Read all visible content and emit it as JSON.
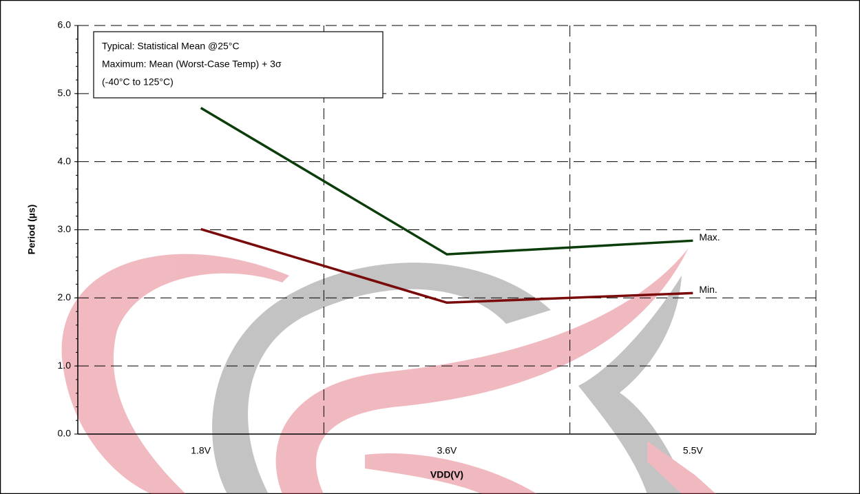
{
  "chart_data": {
    "type": "line",
    "ylabel": "Period (µs)",
    "xlabel": "VDD(V)",
    "annotation": [
      "Typical: Statistical Mean @25°C",
      "Maximum: Mean (Worst-Case Temp) + 3σ",
      "(-40°C to 125°C)"
    ],
    "categories": [
      "1.8V",
      "3.6V",
      "5.5V"
    ],
    "series": [
      {
        "name": "Max.",
        "color": "#0b3d0b",
        "values": [
          4.79,
          2.64,
          2.84
        ]
      },
      {
        "name": "Min.",
        "color": "#7a0a0a",
        "values": [
          3.01,
          1.93,
          2.07
        ]
      }
    ],
    "ylim": [
      0,
      6
    ],
    "yticks": [
      {
        "value": 0,
        "label": "0.0"
      },
      {
        "value": 1,
        "label": "1.0"
      },
      {
        "value": 2,
        "label": "2.0"
      },
      {
        "value": 3,
        "label": "3.0"
      },
      {
        "value": 4,
        "label": "4.0"
      },
      {
        "value": 5,
        "label": "5.0"
      },
      {
        "value": 6,
        "label": "6.0"
      }
    ],
    "grid": true
  }
}
